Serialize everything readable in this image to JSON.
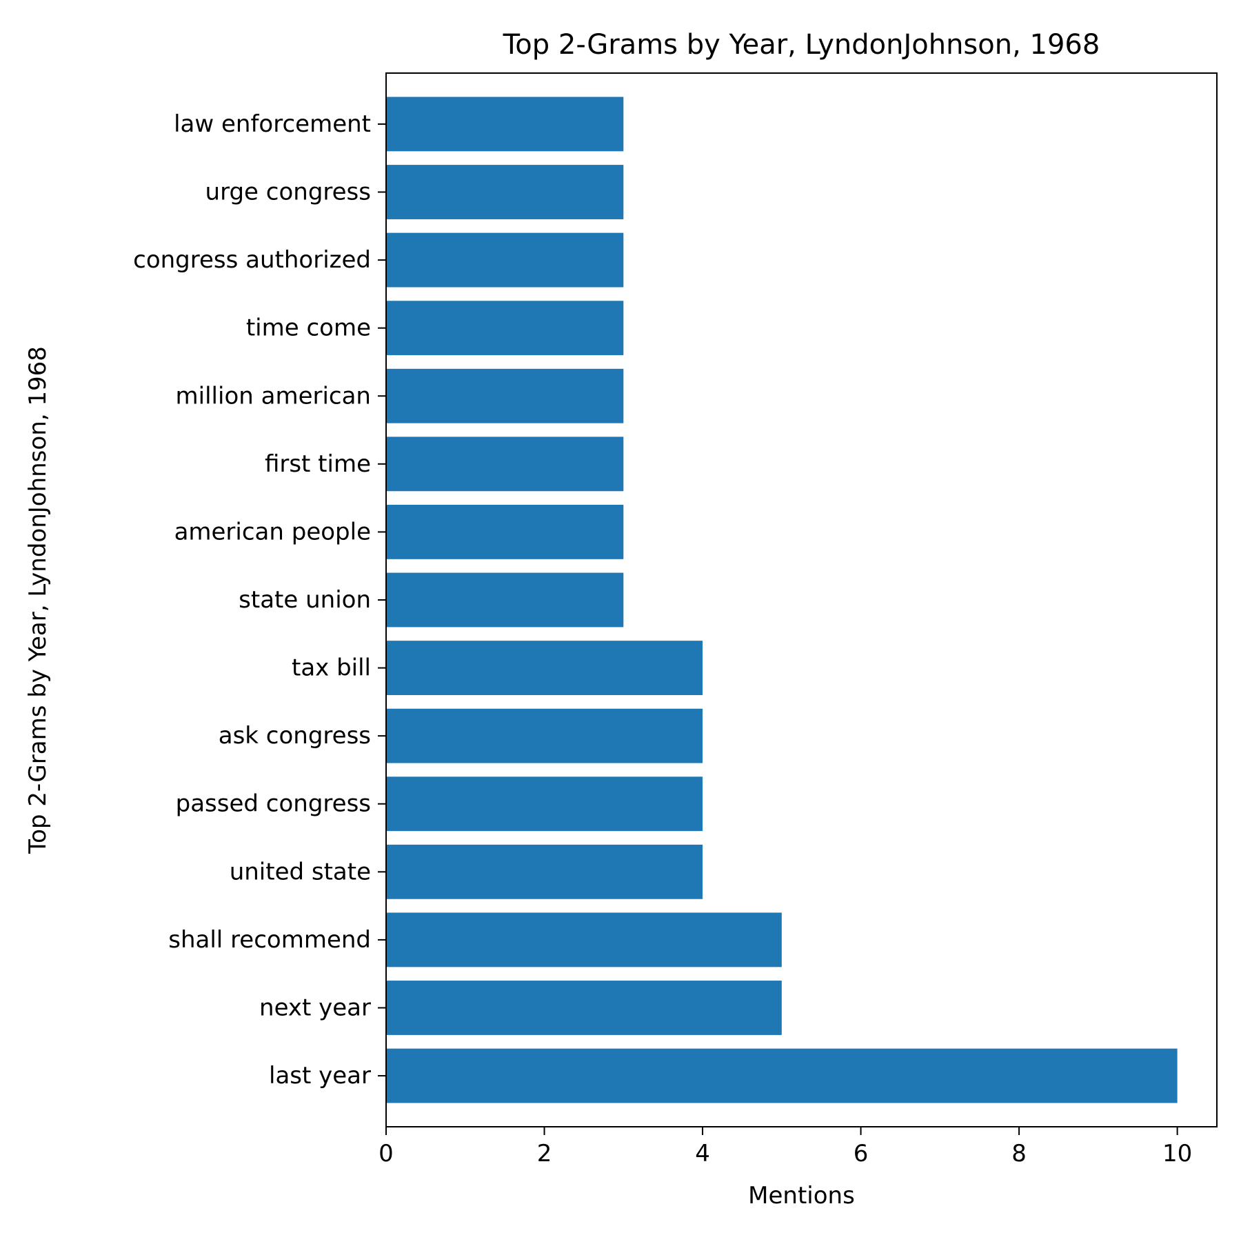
{
  "chart_data": {
    "type": "bar",
    "orientation": "horizontal",
    "title": "Top 2-Grams by Year, LyndonJohnson, 1968",
    "xlabel": "Mentions",
    "ylabel": "Top 2-Grams by Year, LyndonJohnson, 1968",
    "categories": [
      "last year",
      "next year",
      "shall recommend",
      "united state",
      "passed congress",
      "ask congress",
      "tax bill",
      "state union",
      "american people",
      "first time",
      "million american",
      "time come",
      "congress authorized",
      "urge congress",
      "law enforcement"
    ],
    "values": [
      10,
      5,
      5,
      4,
      4,
      4,
      4,
      3,
      3,
      3,
      3,
      3,
      3,
      3,
      3
    ],
    "xlim": [
      0,
      10.5
    ],
    "xticks": [
      "0",
      "2",
      "4",
      "6",
      "8",
      "10"
    ],
    "xtick_values": [
      0,
      2,
      4,
      6,
      8,
      10
    ],
    "grid": false,
    "bar_color": "#1f77b4",
    "axis_color": "#000000"
  }
}
